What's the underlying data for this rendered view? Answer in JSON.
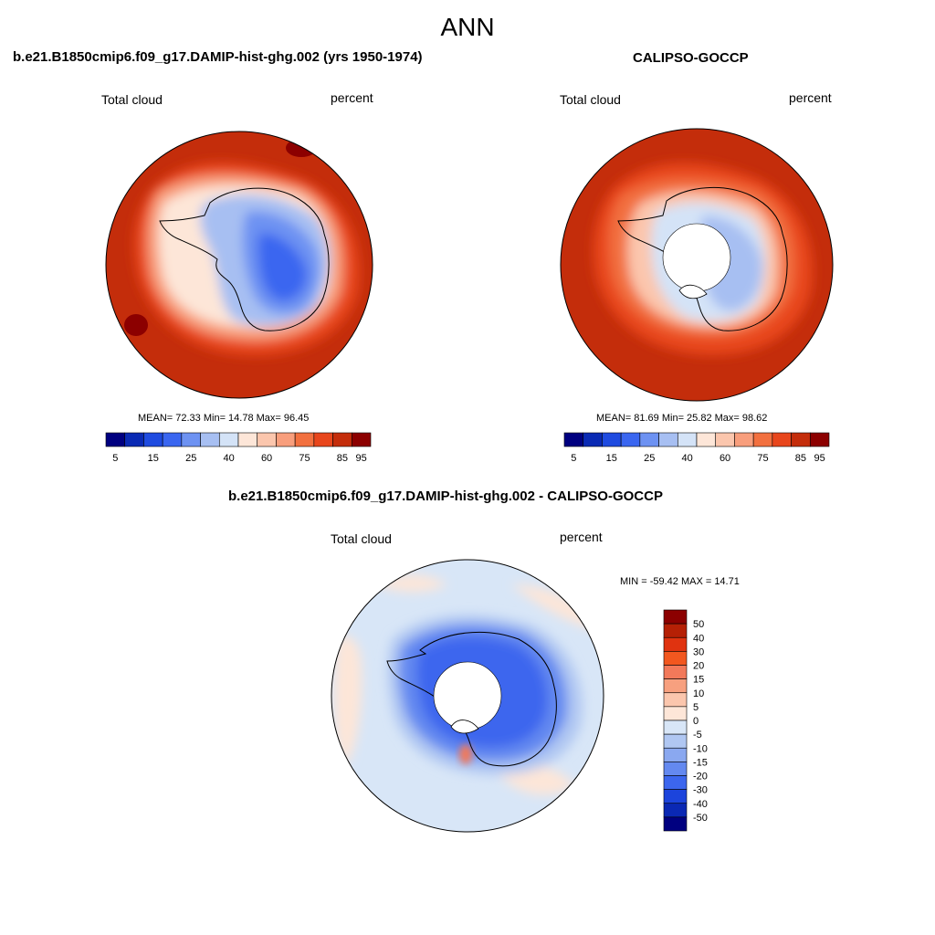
{
  "title": "ANN",
  "colors": {
    "seq": [
      "#000080",
      "#0a2ab4",
      "#1f4be0",
      "#3a66f0",
      "#6d92f2",
      "#a7bff2",
      "#d4e3f7",
      "#fde6d8",
      "#fbc6ad",
      "#f89e7c",
      "#f2703f",
      "#e8461c",
      "#c42d0b",
      "#8c0000"
    ],
    "diff": [
      "#8c0000",
      "#b52005",
      "#e03310",
      "#f2571f",
      "#f2795a",
      "#f7a07f",
      "#fbc6ad",
      "#fde6d8",
      "#d8e6f7",
      "#b0c7f2",
      "#8aa8f0",
      "#6489f0",
      "#3c66ee",
      "#1c44dc",
      "#0a28b4",
      "#000080"
    ],
    "land_mask": "#ffffff"
  },
  "panels": [
    {
      "title": "b.e21.B1850cmip6.f09_g17.DAMIP-hist-ghg.002 (yrs 1950-1974)",
      "left_label": "Total cloud",
      "right_label": "percent",
      "stats": "MEAN=  72.33  Min=  14.78  Max=  96.45",
      "colorbar_labels": [
        "5",
        "15",
        "25",
        "40",
        "60",
        "75",
        "85",
        "95"
      ]
    },
    {
      "title": "CALIPSO-GOCCP",
      "left_label": "Total cloud",
      "right_label": "percent",
      "stats": "MEAN=  81.69  Min=  25.82  Max=  98.62",
      "colorbar_labels": [
        "5",
        "15",
        "25",
        "40",
        "60",
        "75",
        "85",
        "95"
      ]
    },
    {
      "title": "b.e21.B1850cmip6.f09_g17.DAMIP-hist-ghg.002 - CALIPSO-GOCCP",
      "left_label": "Total cloud",
      "right_label": "percent",
      "stats": "MIN = -59.42 MAX =  14.71",
      "colorbar_labels": [
        "50",
        "40",
        "30",
        "20",
        "15",
        "10",
        "5",
        "0",
        "-5",
        "-10",
        "-15",
        "-20",
        "-30",
        "-40",
        "-50"
      ]
    }
  ]
}
